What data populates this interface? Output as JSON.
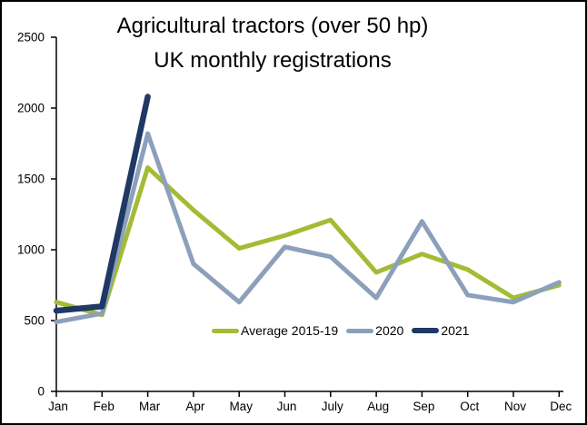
{
  "window": {
    "background": "#ffffff",
    "border_color": "#000000"
  },
  "chart_data": {
    "type": "line",
    "title_line1": "Agricultural tractors (over 50 hp)",
    "title_line2": "UK monthly registrations",
    "categories": [
      "Jan",
      "Feb",
      "Mar",
      "Apr",
      "May",
      "Jun",
      "July",
      "Aug",
      "Sep",
      "Oct",
      "Nov",
      "Dec"
    ],
    "yticks": [
      0,
      500,
      1000,
      1500,
      2000,
      2500
    ],
    "ylim": [
      0,
      2500
    ],
    "grid": false,
    "legend_position": "inside-bottom",
    "axis_color": "#000000",
    "text_color": "#000000",
    "series": [
      {
        "name": "Average 2015-19",
        "color": "#a2bc35",
        "stroke_width": 5,
        "values": [
          630,
          540,
          1580,
          1280,
          1010,
          1100,
          1210,
          840,
          970,
          860,
          660,
          750
        ]
      },
      {
        "name": "2020",
        "color": "#8ca0bc",
        "stroke_width": 5,
        "values": [
          490,
          550,
          1820,
          900,
          630,
          1020,
          950,
          660,
          1200,
          680,
          630,
          770
        ]
      },
      {
        "name": "2021",
        "color": "#1f3864",
        "stroke_width": 6.5,
        "values": [
          570,
          600,
          2080,
          null,
          null,
          null,
          null,
          null,
          null,
          null,
          null,
          null
        ]
      }
    ]
  }
}
